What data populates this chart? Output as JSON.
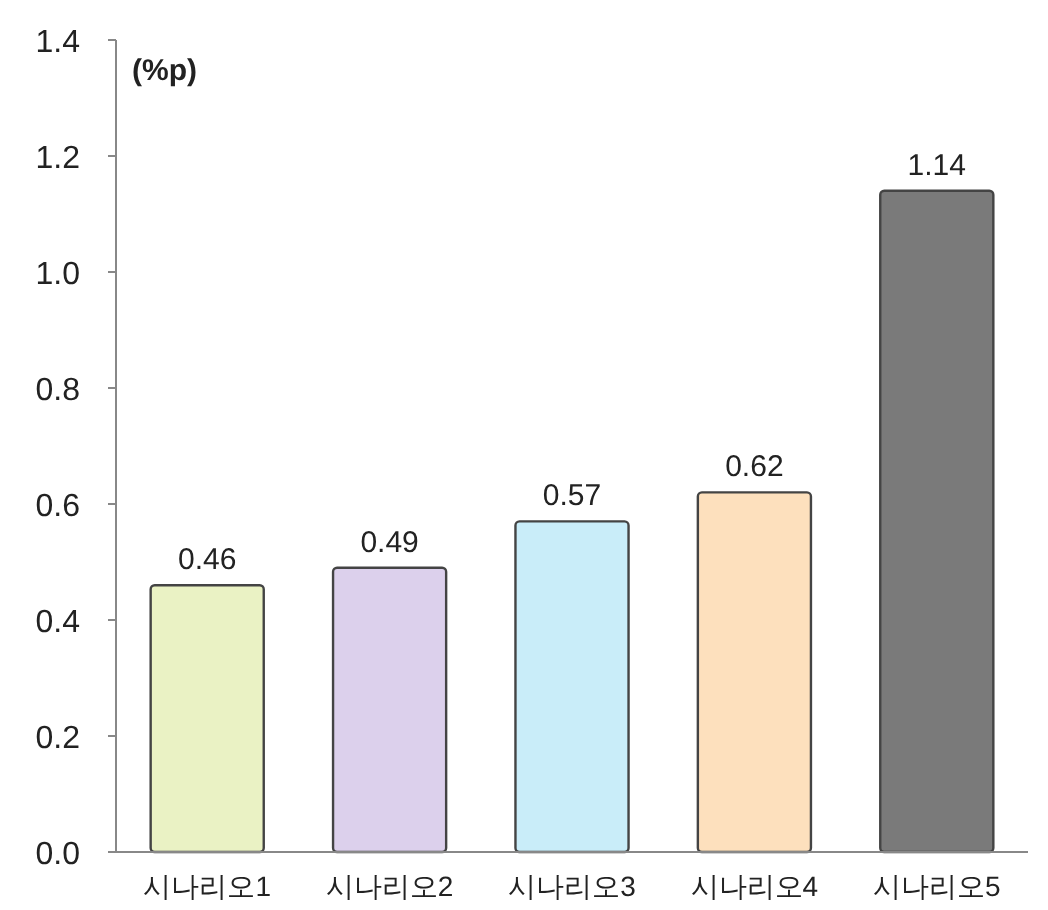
{
  "chart_data": {
    "type": "bar",
    "ylabel": "(%p)",
    "categories": [
      "시나리오1",
      "시나리오2",
      "시나리오3",
      "시나리오4",
      "시나리오5"
    ],
    "values": [
      0.46,
      0.49,
      0.57,
      0.62,
      1.14
    ],
    "colors": [
      "#eaf2c4",
      "#dcd0ec",
      "#c9edf9",
      "#fde0bd",
      "#7a7a7a"
    ],
    "ylim": [
      0,
      1.4
    ],
    "yticks": [
      {
        "value": 0,
        "label": "0.0"
      },
      0.2,
      0.4,
      0.6,
      0.8,
      {
        "value": 1,
        "label": "1.0"
      },
      1.2,
      1.4
    ],
    "data_labels": true,
    "grid": false
  }
}
